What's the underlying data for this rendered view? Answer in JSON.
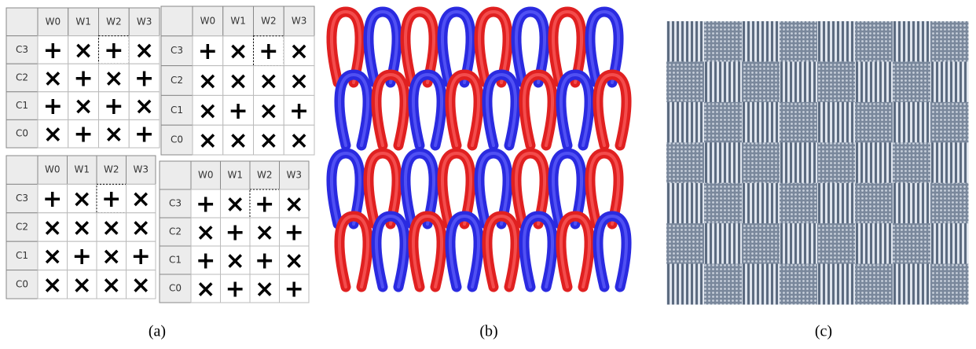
{
  "grids": [
    {
      "columns": [
        "W0",
        "W1",
        "W2",
        "W3"
      ],
      "rows": [
        {
          "label": "C3",
          "cells": [
            "+",
            "×",
            "+",
            "×"
          ]
        },
        {
          "label": "C2",
          "cells": [
            "×",
            "+",
            "×",
            "+"
          ]
        },
        {
          "label": "C1",
          "cells": [
            "+",
            "×",
            "+",
            "×"
          ]
        },
        {
          "label": "C0",
          "cells": [
            "×",
            "+",
            "×",
            "+"
          ]
        }
      ]
    },
    {
      "columns": [
        "W0",
        "W1",
        "W2",
        "W3"
      ],
      "rows": [
        {
          "label": "C3",
          "cells": [
            "+",
            "×",
            "+",
            "×"
          ]
        },
        {
          "label": "C2",
          "cells": [
            "×",
            "×",
            "×",
            "×"
          ]
        },
        {
          "label": "C1",
          "cells": [
            "×",
            "+",
            "×",
            "+"
          ]
        },
        {
          "label": "C0",
          "cells": [
            "×",
            "×",
            "×",
            "×"
          ]
        }
      ]
    },
    {
      "columns": [
        "W0",
        "W1",
        "W2",
        "W3"
      ],
      "rows": [
        {
          "label": "C3",
          "cells": [
            "+",
            "×",
            "+",
            "×"
          ]
        },
        {
          "label": "C2",
          "cells": [
            "×",
            "×",
            "×",
            "×"
          ]
        },
        {
          "label": "C1",
          "cells": [
            "×",
            "+",
            "×",
            "+"
          ]
        },
        {
          "label": "C0",
          "cells": [
            "×",
            "×",
            "×",
            "×"
          ]
        }
      ]
    },
    {
      "columns": [
        "W0",
        "W1",
        "W2",
        "W3"
      ],
      "rows": [
        {
          "label": "C3",
          "cells": [
            "+",
            "×",
            "+",
            "×"
          ]
        },
        {
          "label": "C2",
          "cells": [
            "×",
            "+",
            "×",
            "+"
          ]
        },
        {
          "label": "C1",
          "cells": [
            "+",
            "×",
            "+",
            "×"
          ]
        },
        {
          "label": "C0",
          "cells": [
            "×",
            "+",
            "×",
            "+"
          ]
        }
      ]
    }
  ],
  "captions": [
    "(a)",
    "(b)",
    "(c)"
  ]
}
